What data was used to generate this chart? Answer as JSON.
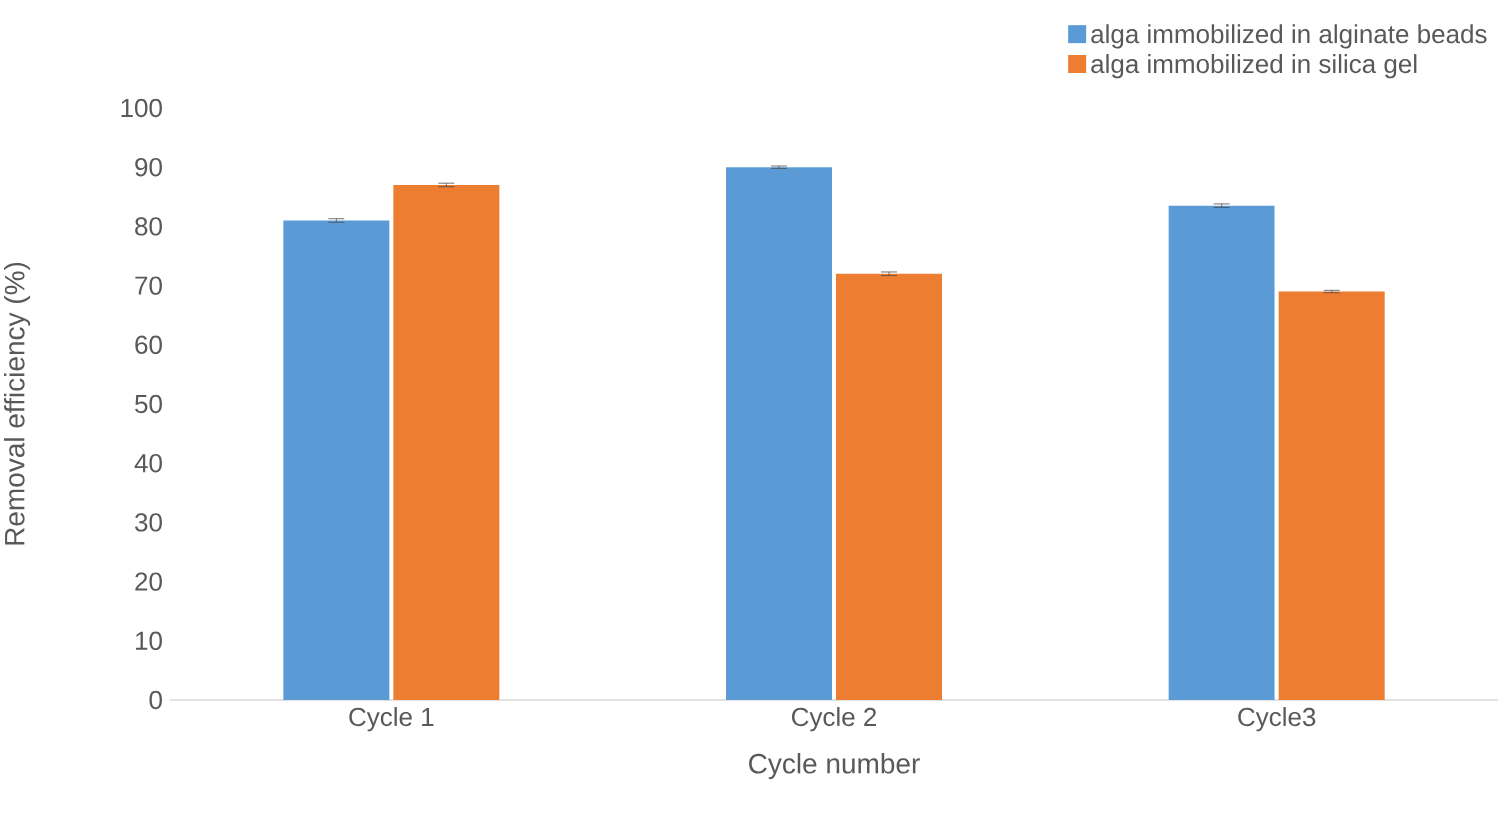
{
  "chart_data": {
    "type": "bar",
    "xlabel": "Cycle number",
    "ylabel": "Removal efficiency (%)",
    "categories": [
      "Cycle 1",
      "Cycle 2",
      "Cycle3"
    ],
    "series": [
      {
        "name": "alga immobilized in alginate beads",
        "color": "#5b9bd5",
        "values": [
          81,
          90,
          83.5
        ],
        "errors": [
          0.3,
          0.2,
          0.3
        ]
      },
      {
        "name": "alga immobilized in silica gel",
        "color": "#ed7d31",
        "values": [
          87,
          72,
          69
        ],
        "errors": [
          0.3,
          0.3,
          0.2
        ]
      }
    ],
    "ylim": [
      0,
      100
    ],
    "yticks": [
      0,
      10,
      20,
      30,
      40,
      50,
      60,
      70,
      80,
      90,
      100
    ],
    "grid": false,
    "legend": "top right"
  }
}
